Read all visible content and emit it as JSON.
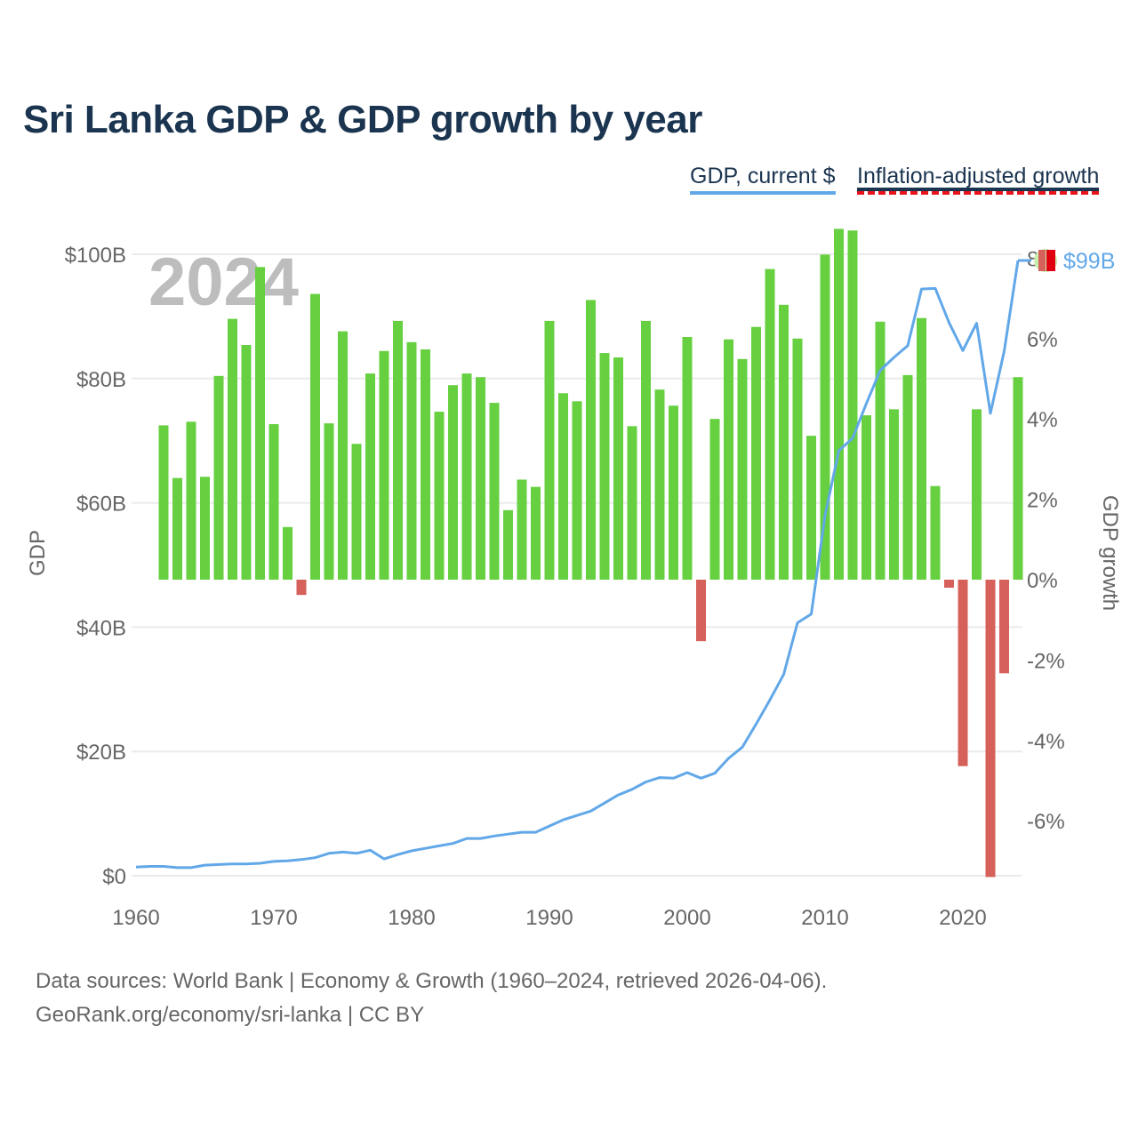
{
  "title": "Sri Lanka GDP & GDP growth by year",
  "legend": {
    "gdp": "GDP, current $",
    "growth": "Inflation-adjusted growth"
  },
  "footer": {
    "line1": "Data sources: World Bank | Economy & Growth (1960–2024, retrieved 2026-04-06).",
    "line2": "GeoRank.org/economy/sri-lanka | CC BY"
  },
  "colors": {
    "line": "#62a8e8",
    "positive": "#66d040",
    "negative": "#d6605a",
    "title": "#1b3550"
  },
  "chart_data": {
    "type": "bar+line",
    "title": "Sri Lanka GDP & GDP growth by year",
    "year_label": "2024",
    "end_label": "$99B",
    "flag_icon": "sri-lanka-flag-icon",
    "xlabel": "",
    "ylabel_left": "GDP",
    "ylabel_right": "GDP growth",
    "xlim": [
      1960,
      2024
    ],
    "ylim_left": [
      0,
      100
    ],
    "ylim_right_pct": [
      -7.4,
      8.1
    ],
    "x_ticks": [
      "1960",
      "1970",
      "1980",
      "1990",
      "2000",
      "2010",
      "2020"
    ],
    "left_ticks": [
      {
        "v": 0,
        "label": "$0"
      },
      {
        "v": 20,
        "label": "$20B"
      },
      {
        "v": 40,
        "label": "$40B"
      },
      {
        "v": 60,
        "label": "$60B"
      },
      {
        "v": 80,
        "label": "$80B"
      },
      {
        "v": 100,
        "label": "$100B"
      }
    ],
    "right_ticks": [
      {
        "v": -6,
        "label": "-6%"
      },
      {
        "v": -4,
        "label": "-4%"
      },
      {
        "v": -2,
        "label": "-2%"
      },
      {
        "v": 0,
        "label": "0%"
      },
      {
        "v": 2,
        "label": "2%"
      },
      {
        "v": 4,
        "label": "4%"
      },
      {
        "v": 6,
        "label": "6%"
      },
      {
        "v": 8,
        "label": "8%"
      }
    ],
    "gdp_series": {
      "name": "GDP, current $ (billions)",
      "start_year": 1960,
      "values": [
        1.4,
        1.5,
        1.5,
        1.3,
        1.3,
        1.7,
        1.8,
        1.9,
        1.9,
        2.0,
        2.3,
        2.4,
        2.6,
        2.9,
        3.6,
        3.8,
        3.6,
        4.1,
        2.7,
        3.4,
        4.0,
        4.4,
        4.8,
        5.2,
        6.0,
        6.0,
        6.4,
        6.7,
        7.0,
        7.0,
        8.0,
        9.0,
        9.7,
        10.4,
        11.7,
        13.0,
        13.9,
        15.1,
        15.8,
        15.7,
        16.6,
        15.7,
        16.5,
        18.9,
        20.7,
        24.4,
        28.3,
        32.4,
        40.7,
        42.1,
        58.0,
        68.4,
        70.4,
        76.0,
        81.3,
        83.4,
        85.3,
        94.4,
        94.5,
        89.0,
        84.5,
        88.9,
        74.4,
        84.4,
        99.0
      ]
    },
    "growth_series": {
      "name": "Inflation-adjusted growth (%)",
      "start_year": 1962,
      "values": [
        3.84,
        2.53,
        3.93,
        2.56,
        5.07,
        6.49,
        5.84,
        7.78,
        3.87,
        1.31,
        -0.38,
        7.11,
        3.89,
        6.18,
        3.38,
        5.13,
        5.69,
        6.44,
        5.91,
        5.73,
        4.18,
        4.84,
        5.13,
        5.04,
        4.4,
        1.73,
        2.49,
        2.31,
        6.44,
        4.64,
        4.44,
        6.96,
        5.64,
        5.53,
        3.82,
        6.44,
        4.73,
        4.33,
        6.04,
        -1.53,
        4.0,
        5.98,
        5.49,
        6.29,
        7.73,
        6.84,
        6.0,
        3.58,
        8.09,
        8.73,
        8.69,
        4.09,
        6.42,
        4.24,
        5.09,
        6.51,
        2.33,
        -0.2,
        -4.64,
        4.24,
        -7.4,
        -2.33,
        5.04
      ]
    }
  }
}
